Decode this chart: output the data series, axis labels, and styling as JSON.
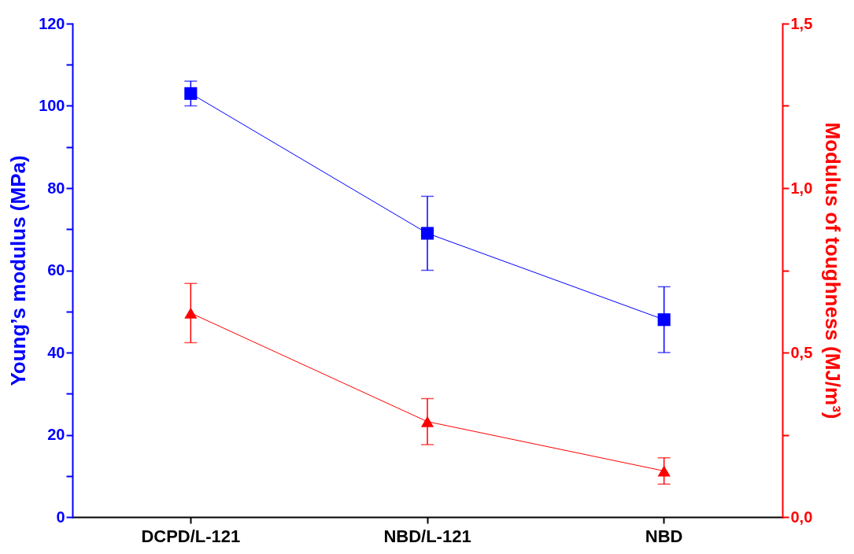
{
  "chart_data": {
    "type": "line",
    "categories": [
      "DCPD/L-121",
      "NBD/L-121",
      "NBD"
    ],
    "ylabel": "Young’s modulus (MPa)",
    "y2label": "Modulus of toughness (MJ/m³)",
    "ylim": [
      0,
      120
    ],
    "yticks": [
      0,
      {
        "value": 10,
        "label": null
      },
      20,
      {
        "value": 30,
        "label": null
      },
      40,
      {
        "value": 50,
        "label": null
      },
      60,
      {
        "value": 70,
        "label": null
      },
      80,
      {
        "value": 90,
        "label": null
      },
      100,
      {
        "value": 110,
        "label": null
      },
      120
    ],
    "y2lim": [
      0,
      1.5
    ],
    "y2ticks": [
      {
        "value": 0,
        "label": "0,0"
      },
      {
        "value": 0.25,
        "label": null
      },
      {
        "value": 0.5,
        "label": "0,5"
      },
      {
        "value": 0.75,
        "label": null
      },
      {
        "value": 1,
        "label": "1,0"
      },
      {
        "value": 1.25,
        "label": null
      },
      {
        "value": 1.5,
        "label": "1,5"
      }
    ],
    "grid": false,
    "series": [
      {
        "color": "#0000ff",
        "marker": "square",
        "values": [
          103,
          69,
          48
        ],
        "errors": [
          3,
          9,
          8
        ]
      },
      {
        "color": "#ff0000",
        "marker": "triangle",
        "axis": "y2",
        "values": [
          0.62,
          0.29,
          0.14
        ],
        "errors": [
          [
            0.53,
            0.71
          ],
          [
            0.22,
            0.36
          ],
          [
            0.1,
            0.18
          ]
        ]
      }
    ]
  }
}
